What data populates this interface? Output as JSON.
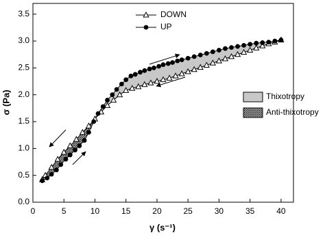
{
  "chart_data": {
    "type": "line",
    "xlabel": "γ (s⁻¹)",
    "ylabel": "σ (Pa)",
    "xlim": [
      0,
      42
    ],
    "ylim": [
      0,
      3.7
    ],
    "xticks": [
      0,
      5,
      10,
      15,
      20,
      25,
      30,
      35,
      40
    ],
    "yticks": [
      {
        "value": 0,
        "label": "0.0"
      },
      {
        "value": 0.5,
        "label": "0.5"
      },
      {
        "value": 1,
        "label": "1.0"
      },
      {
        "value": 1.5,
        "label": "1.5"
      },
      {
        "value": 2,
        "label": "2.0"
      },
      {
        "value": 2.5,
        "label": "2.5"
      },
      {
        "value": 3,
        "label": "3.0"
      },
      {
        "value": 3.5,
        "label": "3.5"
      }
    ],
    "series": [
      {
        "name": "DOWN",
        "color": "#000000",
        "marker": "open-triangle",
        "x": [
          40,
          39,
          38,
          37,
          36,
          35,
          34,
          33,
          32,
          31,
          30,
          29,
          28,
          27,
          26,
          25,
          24,
          23,
          22,
          21,
          20,
          19,
          18,
          17,
          16,
          15,
          14,
          13,
          12,
          11,
          10,
          9,
          8,
          7,
          6,
          5,
          4,
          3,
          2,
          1.5
        ],
        "values": [
          3.02,
          2.98,
          2.95,
          2.91,
          2.87,
          2.83,
          2.79,
          2.75,
          2.71,
          2.67,
          2.63,
          2.59,
          2.55,
          2.51,
          2.47,
          2.43,
          2.39,
          2.35,
          2.31,
          2.28,
          2.25,
          2.22,
          2.19,
          2.15,
          2.12,
          2.08,
          2.0,
          1.9,
          1.8,
          1.68,
          1.55,
          1.42,
          1.3,
          1.17,
          1.05,
          0.93,
          0.8,
          0.65,
          0.5,
          0.42
        ]
      },
      {
        "name": "UP",
        "color": "#000000",
        "marker": "filled-circle",
        "x": [
          1.5,
          2.3,
          3,
          3.8,
          4.5,
          5.3,
          6,
          6.8,
          7.5,
          8.3,
          9,
          9.8,
          10.5,
          11.3,
          12,
          12.8,
          13.5,
          14.3,
          15,
          15.8,
          16.5,
          17.3,
          18,
          18.8,
          19.5,
          20.3,
          21,
          21.8,
          22.5,
          23.3,
          24,
          25,
          26,
          27,
          28,
          29,
          30,
          31,
          32,
          33,
          34,
          35,
          36,
          37,
          38,
          39,
          40
        ],
        "values": [
          0.4,
          0.45,
          0.52,
          0.6,
          0.7,
          0.8,
          0.88,
          0.97,
          1.05,
          1.15,
          1.3,
          1.5,
          1.65,
          1.78,
          1.9,
          2.0,
          2.1,
          2.2,
          2.28,
          2.35,
          2.38,
          2.42,
          2.45,
          2.48,
          2.5,
          2.53,
          2.56,
          2.58,
          2.6,
          2.63,
          2.65,
          2.68,
          2.71,
          2.74,
          2.77,
          2.8,
          2.83,
          2.86,
          2.88,
          2.9,
          2.92,
          2.94,
          2.96,
          2.97,
          2.98,
          3.0,
          3.02
        ]
      }
    ],
    "areas": [
      {
        "name": "Thixotropy",
        "fill": "#c8c8c8"
      },
      {
        "name": "Anti-thixotropy",
        "fill": "hatch"
      }
    ]
  }
}
